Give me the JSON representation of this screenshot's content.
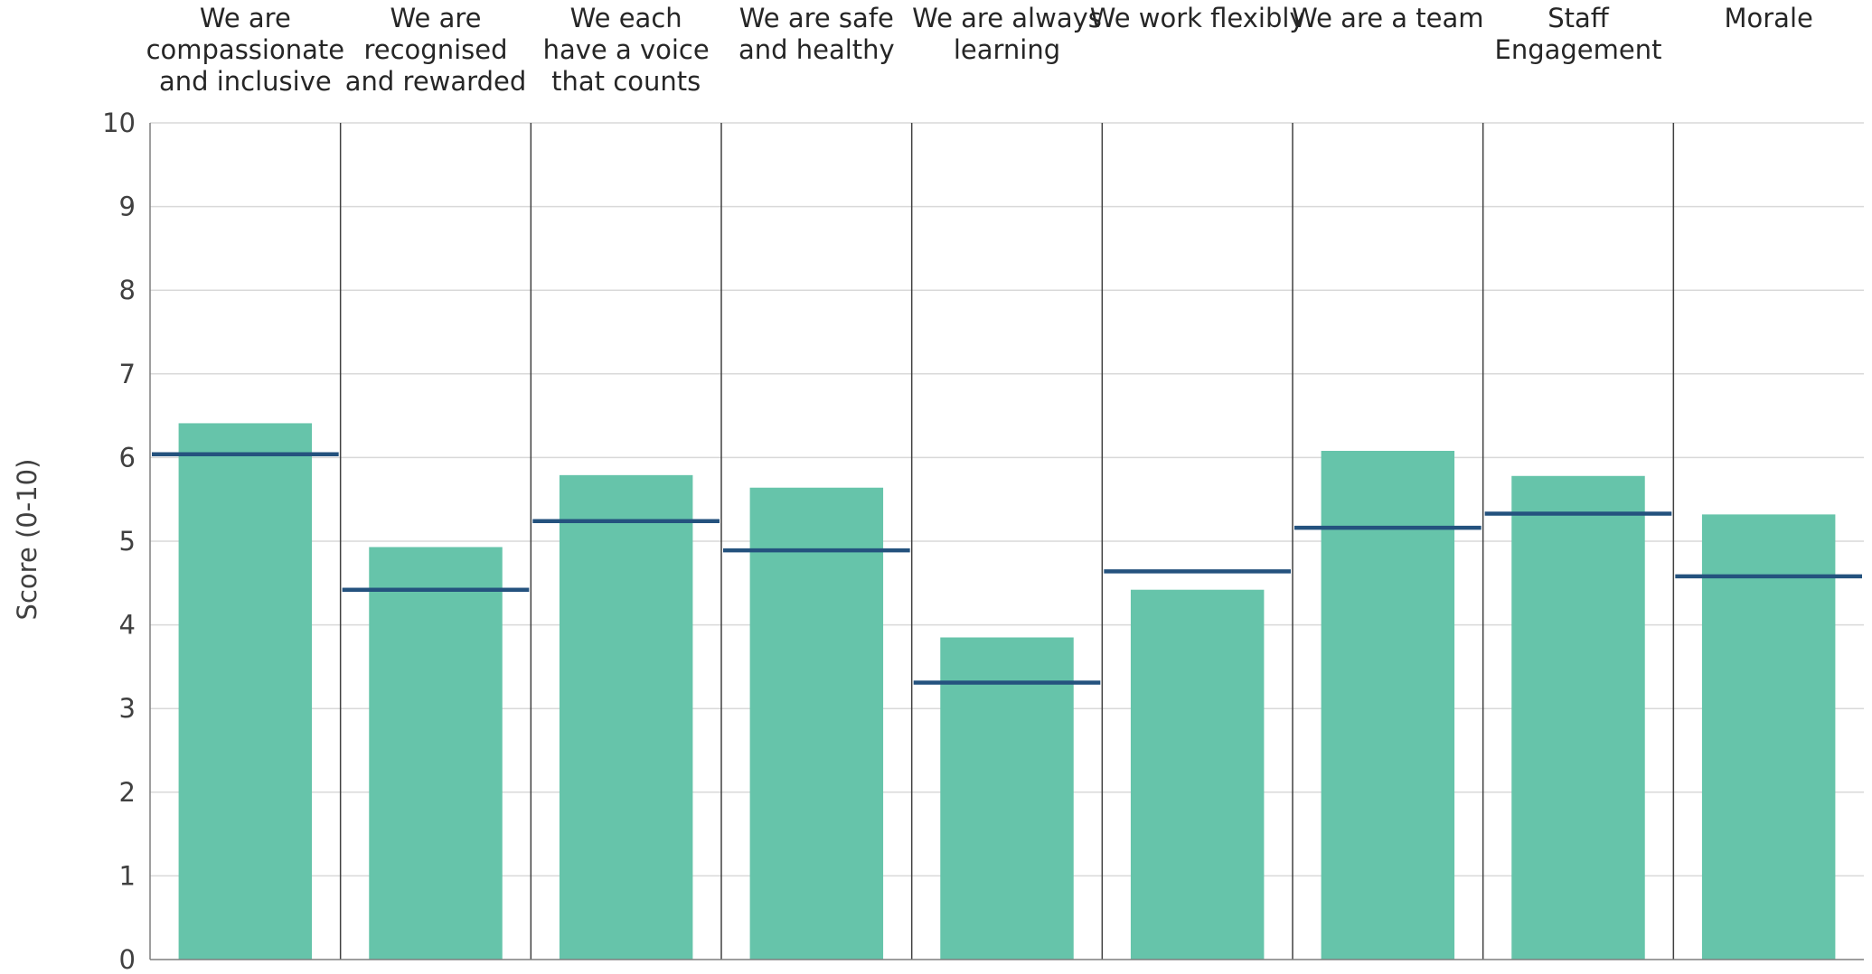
{
  "chart_data": {
    "type": "bar",
    "ylabel": "Score (0-10)",
    "ylim": [
      0,
      10
    ],
    "yticks": [
      "0",
      "1",
      "2",
      "3",
      "4",
      "5",
      "6",
      "7",
      "8",
      "9",
      "10"
    ],
    "grid": true,
    "categories": [
      [
        "We are",
        "compassionate",
        "and inclusive"
      ],
      [
        "We are",
        "recognised",
        "and rewarded"
      ],
      [
        "We each",
        "have a voice",
        "that counts"
      ],
      [
        "We are safe",
        "and healthy"
      ],
      [
        "We are always",
        "learning"
      ],
      [
        "We work flexibly"
      ],
      [
        "We are a team"
      ],
      [
        "Staff",
        "Engagement"
      ],
      [
        "Morale"
      ]
    ],
    "series": [
      {
        "values": [
          6.41,
          4.93,
          5.79,
          5.64,
          3.85,
          4.42,
          6.08,
          5.78,
          5.32
        ]
      },
      {
        "values": [
          6.04,
          4.42,
          5.24,
          4.89,
          3.31,
          4.64,
          5.16,
          5.33,
          4.58
        ]
      }
    ],
    "colors": {
      "bar": "#66c4aa",
      "marker": "#24527e",
      "grid": "#d9d9d9",
      "divider": "#404040",
      "axis": "#7f7f7f"
    }
  }
}
